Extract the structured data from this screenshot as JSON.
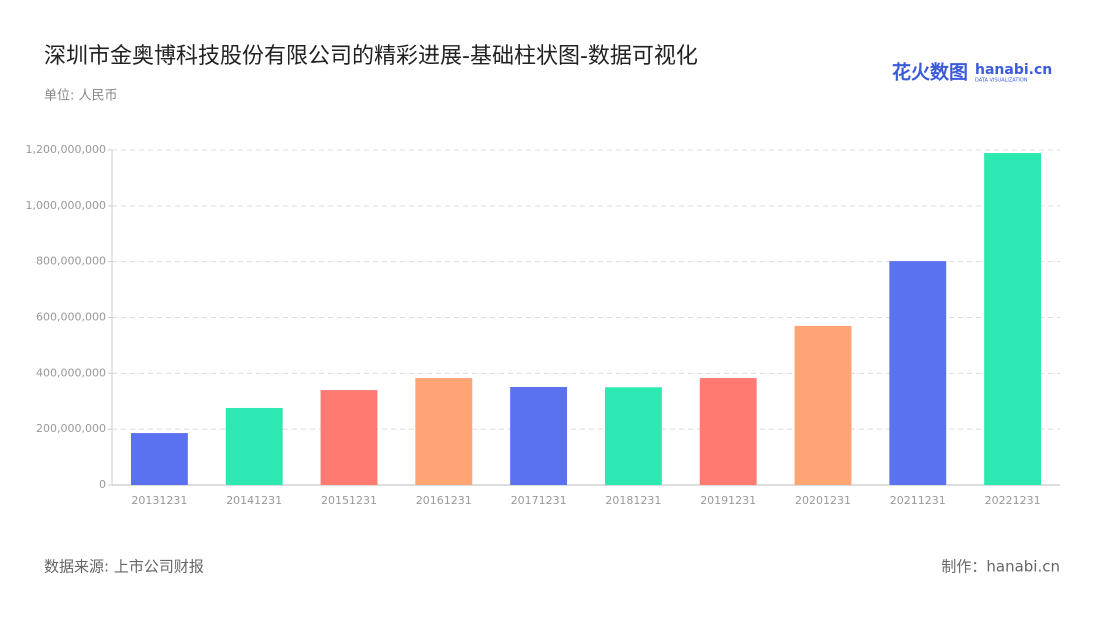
{
  "chart_data": {
    "type": "bar",
    "title": "深圳市金奥博科技股份有限公司的精彩进展-基础柱状图-数据可视化",
    "subtitle": "单位: 人民币",
    "source": "数据来源: 上市公司财报",
    "credit": "制作：hanabi.cn",
    "logo": {
      "name": "花火数图",
      "site": "hanabi.cn",
      "tagline": "DATA VISUALIZATION"
    },
    "categories": [
      "20131231",
      "20141231",
      "20151231",
      "20161231",
      "20171231",
      "20181231",
      "20191231",
      "20201231",
      "20211231",
      "20221231"
    ],
    "values": [
      186000000,
      276000000,
      340000000,
      383000000,
      351000000,
      350000000,
      383000000,
      570000000,
      802000000,
      1189000000
    ],
    "colors": [
      "#5a72ef",
      "#2de8b0",
      "#ff7b71",
      "#ffa474",
      "#5a72ef",
      "#2de8b0",
      "#ff7b71",
      "#ffa474",
      "#5a72ef",
      "#2de8b0"
    ],
    "ylim": [
      0,
      1200000000
    ],
    "yticks": [
      0,
      {
        "value": 200000000,
        "label": "200,000,000"
      },
      {
        "value": 400000000,
        "label": "400,000,000"
      },
      {
        "value": 600000000,
        "label": "600,000,000"
      },
      {
        "value": 800000000,
        "label": "800,000,000"
      },
      {
        "value": 1000000000,
        "label": "1,000,000,000"
      },
      {
        "value": 1200000000,
        "label": "1,200,000,000"
      }
    ],
    "grid": true
  }
}
